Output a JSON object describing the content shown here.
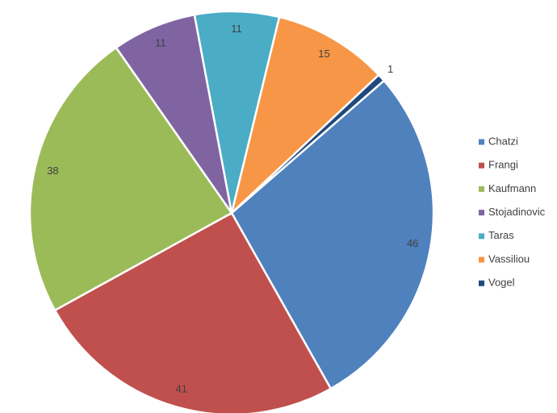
{
  "chart_data": {
    "type": "pie",
    "categories": [
      "Chatzi",
      "Frangi",
      "Kaufmann",
      "Stojadinovic",
      "Taras",
      "Vassiliou",
      "Vogel"
    ],
    "values": [
      46,
      41,
      38,
      11,
      11,
      15,
      1
    ],
    "colors": [
      "#4f81bd",
      "#c0504d",
      "#9bbb59",
      "#8064a2",
      "#4bacc6",
      "#f79646",
      "#1f497d"
    ],
    "legend": "right"
  }
}
